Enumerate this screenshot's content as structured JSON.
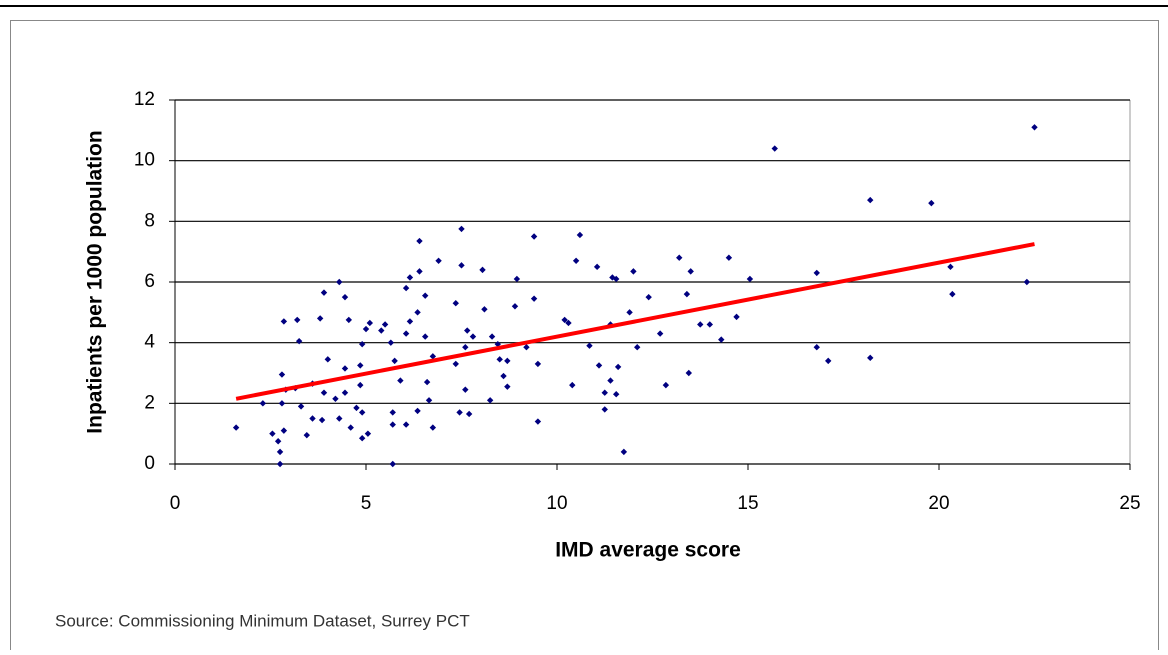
{
  "chart_data": {
    "type": "scatter",
    "x_label": "IMD average score",
    "y_label": "Inpatients per 1000 population",
    "source": "Source: Commissioning Minimum Dataset, Surrey PCT",
    "xlim": [
      0,
      25
    ],
    "xticks": [
      0,
      5,
      10,
      15,
      20,
      25
    ],
    "ylim": [
      0,
      12
    ],
    "yticks": [
      0,
      2,
      4,
      6,
      8,
      10,
      12
    ],
    "grid": true,
    "color": "#000080",
    "x": [
      1.6,
      22.5,
      15.7,
      18.2,
      19.8,
      22.3,
      20.3,
      20.35,
      16.8,
      16.8,
      17.1,
      18.2,
      15.05,
      14.5,
      14.7,
      14.3,
      14.0,
      13.75,
      13.5,
      13.2,
      13.4,
      13.45,
      12.85,
      12.7,
      12.4,
      12.0,
      12.1,
      11.75,
      11.9,
      11.45,
      11.55,
      11.05,
      11.4,
      11.25,
      11.25,
      11.55,
      11.4,
      11.6,
      10.6,
      10.5,
      10.2,
      10.3,
      10.4,
      10.85,
      11.1,
      9.4,
      9.4,
      8.95,
      8.9,
      9.2,
      9.5,
      9.5,
      7.5,
      7.5,
      8.05,
      8.1,
      8.3,
      8.45,
      8.5,
      8.6,
      8.25,
      8.7,
      8.7,
      7.8,
      7.65,
      7.6,
      7.6,
      7.45,
      7.7,
      7.35,
      7.35,
      6.4,
      6.4,
      6.9,
      6.55,
      6.15,
      6.05,
      6.15,
      6.05,
      6.35,
      6.55,
      6.75,
      6.6,
      6.75,
      6.65,
      6.35,
      6.05,
      5.9,
      5.75,
      5.65,
      5.5,
      5.4,
      5.7,
      5.7,
      5.7,
      5.1,
      5.0,
      4.9,
      4.85,
      4.85,
      4.9,
      4.9,
      5.05,
      4.55,
      4.45,
      4.3,
      4.45,
      4.45,
      4.6,
      4.75,
      4.2,
      4.3,
      3.9,
      3.8,
      4.0,
      3.9,
      3.85,
      3.6,
      3.6,
      3.45,
      3.25,
      3.2,
      3.15,
      3.3,
      2.85,
      2.8,
      2.9,
      2.8,
      2.85,
      2.75,
      2.75,
      2.55,
      2.3,
      2.7
    ],
    "values": [
      1.2,
      11.1,
      10.4,
      8.7,
      8.6,
      6.0,
      6.5,
      5.6,
      6.3,
      3.85,
      3.4,
      3.5,
      6.1,
      6.8,
      4.85,
      4.1,
      4.6,
      4.6,
      6.35,
      6.8,
      5.6,
      3.0,
      2.6,
      4.3,
      5.5,
      6.35,
      3.85,
      0.4,
      5.0,
      6.15,
      6.1,
      6.5,
      4.6,
      2.35,
      1.8,
      2.3,
      2.75,
      3.2,
      7.55,
      6.7,
      4.75,
      4.65,
      2.6,
      3.9,
      3.25,
      7.5,
      5.45,
      6.1,
      5.2,
      3.85,
      3.3,
      1.4,
      7.75,
      6.55,
      6.4,
      5.1,
      4.2,
      3.95,
      3.45,
      2.9,
      2.1,
      2.55,
      3.4,
      4.2,
      4.4,
      3.85,
      2.45,
      1.7,
      1.65,
      5.3,
      3.3,
      7.35,
      6.35,
      6.7,
      5.55,
      6.15,
      5.8,
      4.7,
      4.3,
      5.0,
      4.2,
      3.55,
      2.7,
      1.2,
      2.1,
      1.75,
      1.3,
      2.75,
      3.4,
      4.0,
      4.6,
      4.4,
      1.7,
      1.3,
      0.0,
      4.65,
      4.45,
      3.95,
      3.25,
      2.6,
      1.7,
      0.85,
      1.0,
      4.75,
      5.5,
      6.0,
      3.15,
      2.35,
      1.2,
      1.85,
      2.15,
      1.5,
      5.65,
      4.8,
      3.45,
      2.35,
      1.45,
      2.65,
      1.5,
      0.95,
      4.05,
      4.75,
      2.5,
      1.9,
      4.7,
      2.95,
      2.45,
      2.0,
      1.1,
      0.4,
      0.0,
      1.0,
      2.0,
      0.75
    ],
    "trendline": {
      "x": [
        1.6,
        22.5
      ],
      "values": [
        2.15,
        7.25
      ],
      "color": "#ff0000"
    }
  }
}
